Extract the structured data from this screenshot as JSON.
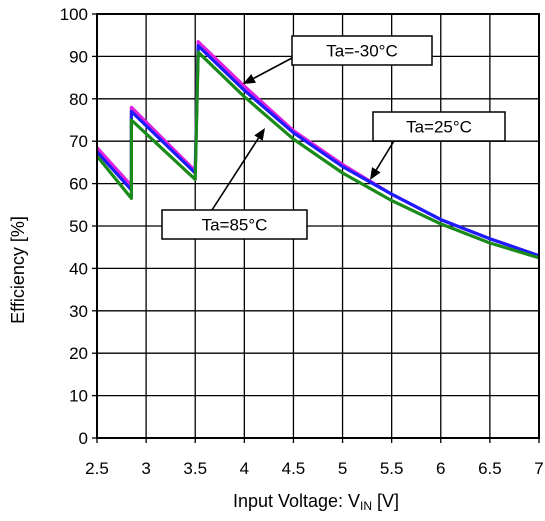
{
  "chart_data": {
    "type": "line",
    "title": "",
    "xlabel": "Input Voltage: V",
    "xlabel_sub": "IN",
    "xlabel_unit": " [V]",
    "ylabel": "Efficiency [%]",
    "xlim": [
      2.5,
      7
    ],
    "ylim": [
      0,
      100
    ],
    "x_ticks": [
      "2.5",
      "3",
      "3.5",
      "4",
      "4.5",
      "5",
      "5.5",
      "6",
      "6.5",
      "7"
    ],
    "y_ticks": [
      "0",
      "10",
      "20",
      "30",
      "40",
      "50",
      "60",
      "70",
      "80",
      "90",
      "100"
    ],
    "grid": true,
    "legend": "none",
    "series": [
      {
        "name": "Ta=-30°C",
        "color": "#e020e0",
        "points": [
          [
            2.5,
            68.5
          ],
          [
            2.85,
            59.5
          ],
          [
            2.85,
            78
          ],
          [
            3.5,
            63
          ],
          [
            3.5,
            63
          ],
          [
            3.53,
            93.5
          ],
          [
            4.0,
            83
          ],
          [
            4.5,
            72.5
          ],
          [
            5.0,
            64.5
          ],
          [
            5.5,
            57.5
          ],
          [
            6.0,
            51.5
          ],
          [
            6.5,
            47
          ],
          [
            7.0,
            43
          ]
        ]
      },
      {
        "name": "Ta=25°C",
        "color": "#1c1cff",
        "points": [
          [
            2.5,
            67.5
          ],
          [
            2.85,
            58.5
          ],
          [
            2.85,
            77
          ],
          [
            3.5,
            62.5
          ],
          [
            3.53,
            92.5
          ],
          [
            4.0,
            82
          ],
          [
            4.5,
            72
          ],
          [
            5.0,
            64
          ],
          [
            5.5,
            57.5
          ],
          [
            6.0,
            51.5
          ],
          [
            6.5,
            47
          ],
          [
            7.0,
            43
          ]
        ]
      },
      {
        "name": "Ta=85°C",
        "color": "#1a8a1a",
        "points": [
          [
            2.5,
            66.5
          ],
          [
            2.85,
            56.5
          ],
          [
            2.85,
            75
          ],
          [
            3.5,
            61
          ],
          [
            3.53,
            91
          ],
          [
            4.0,
            80.5
          ],
          [
            4.5,
            70.5
          ],
          [
            5.0,
            62.5
          ],
          [
            5.5,
            56
          ],
          [
            6.0,
            50.5
          ],
          [
            6.5,
            46
          ],
          [
            7.0,
            42.5
          ]
        ]
      }
    ],
    "annotations": [
      {
        "text": "Ta=-30°C",
        "series": 0
      },
      {
        "text": "Ta=25°C",
        "series": 1
      },
      {
        "text": "Ta=85°C",
        "series": 2
      }
    ]
  }
}
